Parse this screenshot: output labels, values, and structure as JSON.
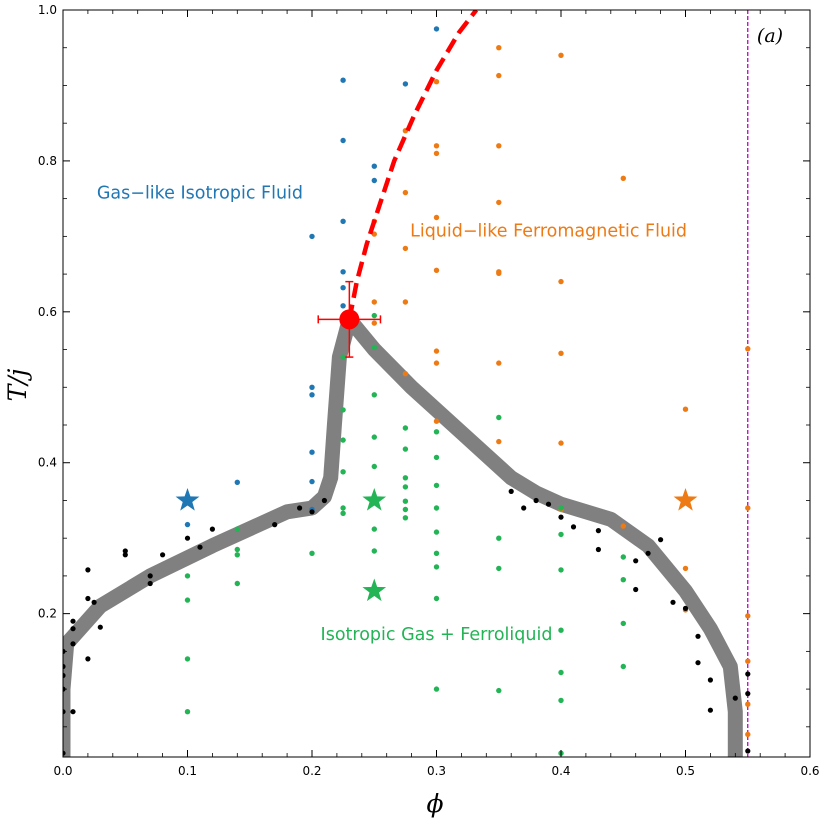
{
  "chart_data": {
    "type": "scatter",
    "panel_label": "(a)",
    "xlabel": "ϕ",
    "ylabel": "T/j",
    "xlim": [
      0.0,
      0.6
    ],
    "ylim": [
      0.01,
      1.0
    ],
    "x_ticks": [
      "0.0",
      "0.1",
      "0.2",
      "0.3",
      "0.4",
      "0.5",
      "0.6"
    ],
    "y_ticks": [
      "0.2",
      "0.4",
      "0.6",
      "0.8",
      "1.0"
    ],
    "colors": {
      "gas": "#1f77b4",
      "ferro": "#ee7a14",
      "coexist": "#22b455",
      "boundary": "#000000",
      "envelope": "#808080",
      "spinodal": "#ff0000",
      "critical": "#ff0000",
      "limit": "#c000c0"
    },
    "region_labels": [
      {
        "text": "Gas−like Isotropic Fluid",
        "x": 0.11,
        "y": 0.75,
        "color": "#1f77b4"
      },
      {
        "text": "Liquid−like Ferromagnetic Fluid",
        "x": 0.39,
        "y": 0.7,
        "color": "#ee7a14"
      },
      {
        "text": "Isotropic Gas + Ferroliquid",
        "x": 0.3,
        "y": 0.165,
        "color": "#22b455"
      }
    ],
    "series": [
      {
        "name": "gas",
        "color": "#1f77b4",
        "points": [
          [
            0.1,
            0.318
          ],
          [
            0.14,
            0.374
          ],
          [
            0.2,
            0.338
          ],
          [
            0.2,
            0.414
          ],
          [
            0.2,
            0.49
          ],
          [
            0.2,
            0.5
          ],
          [
            0.2,
            0.7
          ],
          [
            0.225,
            0.907
          ],
          [
            0.225,
            0.827
          ],
          [
            0.225,
            0.72
          ],
          [
            0.225,
            0.653
          ],
          [
            0.225,
            0.632
          ],
          [
            0.25,
            0.793
          ],
          [
            0.25,
            0.774
          ],
          [
            0.275,
            0.902
          ],
          [
            0.3,
            0.975
          ],
          [
            0.225,
            0.608
          ],
          [
            0.2,
            0.375
          ]
        ]
      },
      {
        "name": "ferro",
        "color": "#ee7a14",
        "points": [
          [
            0.25,
            0.72
          ],
          [
            0.25,
            0.703
          ],
          [
            0.25,
            0.613
          ],
          [
            0.25,
            0.585
          ],
          [
            0.275,
            0.84
          ],
          [
            0.275,
            0.758
          ],
          [
            0.275,
            0.684
          ],
          [
            0.275,
            0.613
          ],
          [
            0.275,
            0.518
          ],
          [
            0.3,
            0.905
          ],
          [
            0.3,
            0.82
          ],
          [
            0.3,
            0.81
          ],
          [
            0.3,
            0.725
          ],
          [
            0.3,
            0.655
          ],
          [
            0.3,
            0.548
          ],
          [
            0.3,
            0.532
          ],
          [
            0.3,
            0.455
          ],
          [
            0.35,
            0.95
          ],
          [
            0.35,
            0.913
          ],
          [
            0.35,
            0.82
          ],
          [
            0.35,
            0.745
          ],
          [
            0.35,
            0.653
          ],
          [
            0.35,
            0.651
          ],
          [
            0.35,
            0.532
          ],
          [
            0.35,
            0.428
          ],
          [
            0.4,
            0.94
          ],
          [
            0.4,
            0.64
          ],
          [
            0.4,
            0.545
          ],
          [
            0.4,
            0.426
          ],
          [
            0.4,
            0.338
          ],
          [
            0.45,
            0.777
          ],
          [
            0.45,
            0.316
          ],
          [
            0.5,
            0.471
          ],
          [
            0.5,
            0.26
          ],
          [
            0.5,
            0.205
          ],
          [
            0.55,
            0.551
          ],
          [
            0.55,
            0.34
          ],
          [
            0.55,
            0.197
          ],
          [
            0.55,
            0.137
          ],
          [
            0.55,
            0.08
          ],
          [
            0.55,
            0.04
          ]
        ]
      },
      {
        "name": "coexist",
        "color": "#22b455",
        "points": [
          [
            0.1,
            0.25
          ],
          [
            0.1,
            0.218
          ],
          [
            0.1,
            0.14
          ],
          [
            0.1,
            0.07
          ],
          [
            0.14,
            0.312
          ],
          [
            0.14,
            0.285
          ],
          [
            0.14,
            0.278
          ],
          [
            0.14,
            0.24
          ],
          [
            0.2,
            0.28
          ],
          [
            0.225,
            0.54
          ],
          [
            0.225,
            0.47
          ],
          [
            0.225,
            0.43
          ],
          [
            0.225,
            0.388
          ],
          [
            0.225,
            0.34
          ],
          [
            0.225,
            0.333
          ],
          [
            0.25,
            0.49
          ],
          [
            0.25,
            0.434
          ],
          [
            0.25,
            0.395
          ],
          [
            0.25,
            0.312
          ],
          [
            0.25,
            0.283
          ],
          [
            0.25,
            0.595
          ],
          [
            0.25,
            0.553
          ],
          [
            0.275,
            0.446
          ],
          [
            0.275,
            0.418
          ],
          [
            0.275,
            0.38
          ],
          [
            0.275,
            0.368
          ],
          [
            0.275,
            0.349
          ],
          [
            0.275,
            0.338
          ],
          [
            0.275,
            0.327
          ],
          [
            0.3,
            0.441
          ],
          [
            0.3,
            0.407
          ],
          [
            0.3,
            0.37
          ],
          [
            0.3,
            0.34
          ],
          [
            0.3,
            0.308
          ],
          [
            0.3,
            0.28
          ],
          [
            0.3,
            0.262
          ],
          [
            0.3,
            0.22
          ],
          [
            0.3,
            0.1
          ],
          [
            0.35,
            0.46
          ],
          [
            0.35,
            0.3
          ],
          [
            0.35,
            0.26
          ],
          [
            0.35,
            0.098
          ],
          [
            0.4,
            0.34
          ],
          [
            0.4,
            0.305
          ],
          [
            0.4,
            0.258
          ],
          [
            0.4,
            0.178
          ],
          [
            0.4,
            0.122
          ],
          [
            0.4,
            0.085
          ],
          [
            0.4,
            0.015
          ],
          [
            0.45,
            0.275
          ],
          [
            0.45,
            0.245
          ],
          [
            0.45,
            0.187
          ],
          [
            0.45,
            0.13
          ]
        ]
      },
      {
        "name": "boundary",
        "color": "#000000",
        "points": [
          [
            0.0,
            0.015
          ],
          [
            0.0,
            0.07
          ],
          [
            0.0,
            0.1
          ],
          [
            0.0,
            0.118
          ],
          [
            0.0,
            0.13
          ],
          [
            0.0,
            0.15
          ],
          [
            0.008,
            0.07
          ],
          [
            0.008,
            0.16
          ],
          [
            0.008,
            0.18
          ],
          [
            0.008,
            0.19
          ],
          [
            0.02,
            0.14
          ],
          [
            0.02,
            0.22
          ],
          [
            0.02,
            0.258
          ],
          [
            0.025,
            0.215
          ],
          [
            0.03,
            0.182
          ],
          [
            0.05,
            0.278
          ],
          [
            0.05,
            0.283
          ],
          [
            0.07,
            0.24
          ],
          [
            0.07,
            0.25
          ],
          [
            0.08,
            0.278
          ],
          [
            0.1,
            0.3
          ],
          [
            0.11,
            0.288
          ],
          [
            0.12,
            0.312
          ],
          [
            0.17,
            0.318
          ],
          [
            0.19,
            0.34
          ],
          [
            0.2,
            0.335
          ],
          [
            0.21,
            0.35
          ],
          [
            0.36,
            0.362
          ],
          [
            0.37,
            0.34
          ],
          [
            0.38,
            0.35
          ],
          [
            0.39,
            0.345
          ],
          [
            0.4,
            0.328
          ],
          [
            0.41,
            0.315
          ],
          [
            0.43,
            0.31
          ],
          [
            0.43,
            0.285
          ],
          [
            0.46,
            0.27
          ],
          [
            0.47,
            0.28
          ],
          [
            0.48,
            0.298
          ],
          [
            0.46,
            0.232
          ],
          [
            0.49,
            0.215
          ],
          [
            0.5,
            0.207
          ],
          [
            0.51,
            0.17
          ],
          [
            0.51,
            0.135
          ],
          [
            0.52,
            0.112
          ],
          [
            0.52,
            0.072
          ],
          [
            0.54,
            0.088
          ],
          [
            0.55,
            0.12
          ],
          [
            0.55,
            0.094
          ],
          [
            0.55,
            0.018
          ]
        ]
      }
    ],
    "envelope_curve": [
      [
        0.0,
        0.01
      ],
      [
        0.0,
        0.1
      ],
      [
        0.003,
        0.16
      ],
      [
        0.03,
        0.21
      ],
      [
        0.07,
        0.25
      ],
      [
        0.12,
        0.29
      ],
      [
        0.18,
        0.335
      ],
      [
        0.2,
        0.34
      ],
      [
        0.21,
        0.355
      ],
      [
        0.215,
        0.38
      ],
      [
        0.218,
        0.45
      ],
      [
        0.222,
        0.54
      ],
      [
        0.23,
        0.59
      ],
      [
        0.25,
        0.55
      ],
      [
        0.28,
        0.5
      ],
      [
        0.32,
        0.44
      ],
      [
        0.36,
        0.38
      ],
      [
        0.38,
        0.36
      ],
      [
        0.4,
        0.345
      ],
      [
        0.44,
        0.325
      ],
      [
        0.47,
        0.29
      ],
      [
        0.5,
        0.23
      ],
      [
        0.52,
        0.18
      ],
      [
        0.536,
        0.13
      ],
      [
        0.54,
        0.07
      ],
      [
        0.54,
        0.01
      ]
    ],
    "spinodal_curve": [
      [
        0.23,
        0.59
      ],
      [
        0.236,
        0.64
      ],
      [
        0.244,
        0.69
      ],
      [
        0.254,
        0.74
      ],
      [
        0.266,
        0.8
      ],
      [
        0.282,
        0.86
      ],
      [
        0.3,
        0.92
      ],
      [
        0.318,
        0.97
      ],
      [
        0.332,
        1.0
      ]
    ],
    "critical_point": {
      "x": 0.23,
      "y": 0.59,
      "x_err": 0.025,
      "y_err": 0.05
    },
    "limit_line": {
      "x": 0.55
    },
    "stars": [
      {
        "x": 0.1,
        "y": 0.35,
        "color": "#1f77b4"
      },
      {
        "x": 0.25,
        "y": 0.35,
        "color": "#22b455"
      },
      {
        "x": 0.25,
        "y": 0.23,
        "color": "#22b455"
      },
      {
        "x": 0.5,
        "y": 0.35,
        "color": "#ee7a14"
      }
    ]
  }
}
